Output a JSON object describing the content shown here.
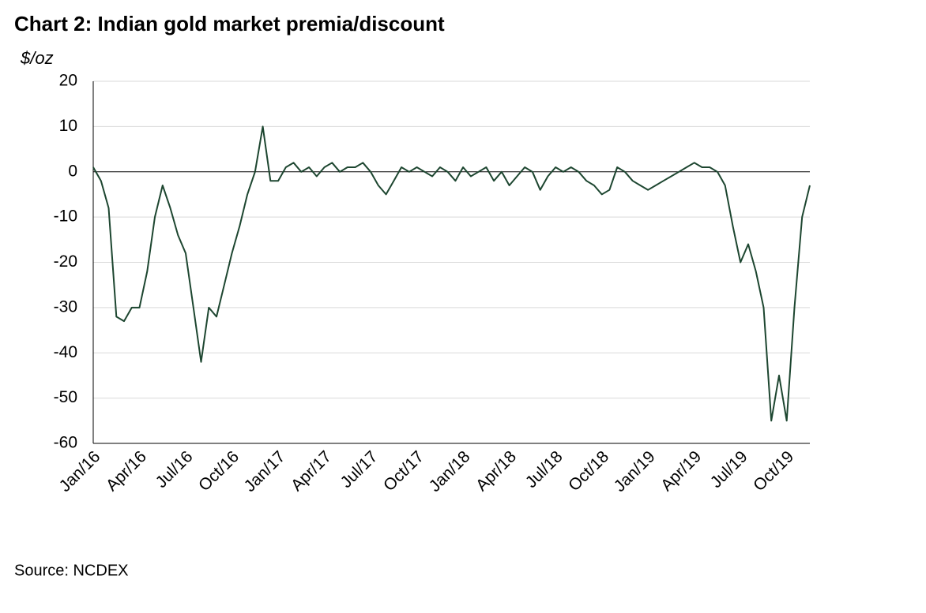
{
  "chart_data": {
    "type": "line",
    "title": "Chart 2: Indian gold market premia/discount",
    "y_label": "$/oz",
    "source": "Source: NCDEX",
    "categories": [
      "Jan/16",
      null,
      null,
      null,
      null,
      null,
      "Apr/16",
      null,
      null,
      null,
      null,
      null,
      "Jul/16",
      null,
      null,
      null,
      null,
      null,
      "Oct/16",
      null,
      null,
      null,
      null,
      null,
      "Jan/17",
      null,
      null,
      null,
      null,
      null,
      "Apr/17",
      null,
      null,
      null,
      null,
      null,
      "Jul/17",
      null,
      null,
      null,
      null,
      null,
      "Oct/17",
      null,
      null,
      null,
      null,
      null,
      "Jan/18",
      null,
      null,
      null,
      null,
      null,
      "Apr/18",
      null,
      null,
      null,
      null,
      null,
      "Jul/18",
      null,
      null,
      null,
      null,
      null,
      "Oct/18",
      null,
      null,
      null,
      null,
      null,
      "Jan/19",
      null,
      null,
      null,
      null,
      null,
      "Apr/19",
      null,
      null,
      null,
      null,
      null,
      "Jul/19",
      null,
      null,
      null,
      null,
      null,
      "Oct/19",
      null,
      null,
      null
    ],
    "values": [
      1,
      -2,
      -8,
      -32,
      -33,
      -30,
      -30,
      -22,
      -10,
      -3,
      -8,
      -14,
      -18,
      -30,
      -42,
      -30,
      -32,
      -25,
      -18,
      -12,
      -5,
      0,
      10,
      -2,
      -2,
      1,
      2,
      0,
      1,
      -1,
      1,
      2,
      0,
      1,
      1,
      2,
      0,
      -3,
      -5,
      -2,
      1,
      0,
      1,
      0,
      -1,
      1,
      0,
      -2,
      1,
      -1,
      0,
      1,
      -2,
      0,
      -3,
      -1,
      1,
      0,
      -4,
      -1,
      1,
      0,
      1,
      0,
      -2,
      -3,
      -5,
      -4,
      1,
      0,
      -2,
      -3,
      -4,
      -3,
      -2,
      -1,
      0,
      1,
      2,
      1,
      1,
      0,
      -3,
      -12,
      -20,
      -16,
      -22,
      -30,
      -55,
      -45,
      -55,
      -30,
      -10,
      -3
    ],
    "color": "#1d4630",
    "ylim": [
      -60,
      20
    ],
    "yticks": [
      -60,
      -50,
      -40,
      -30,
      -20,
      -10,
      0,
      10,
      20
    ],
    "grid": true
  }
}
